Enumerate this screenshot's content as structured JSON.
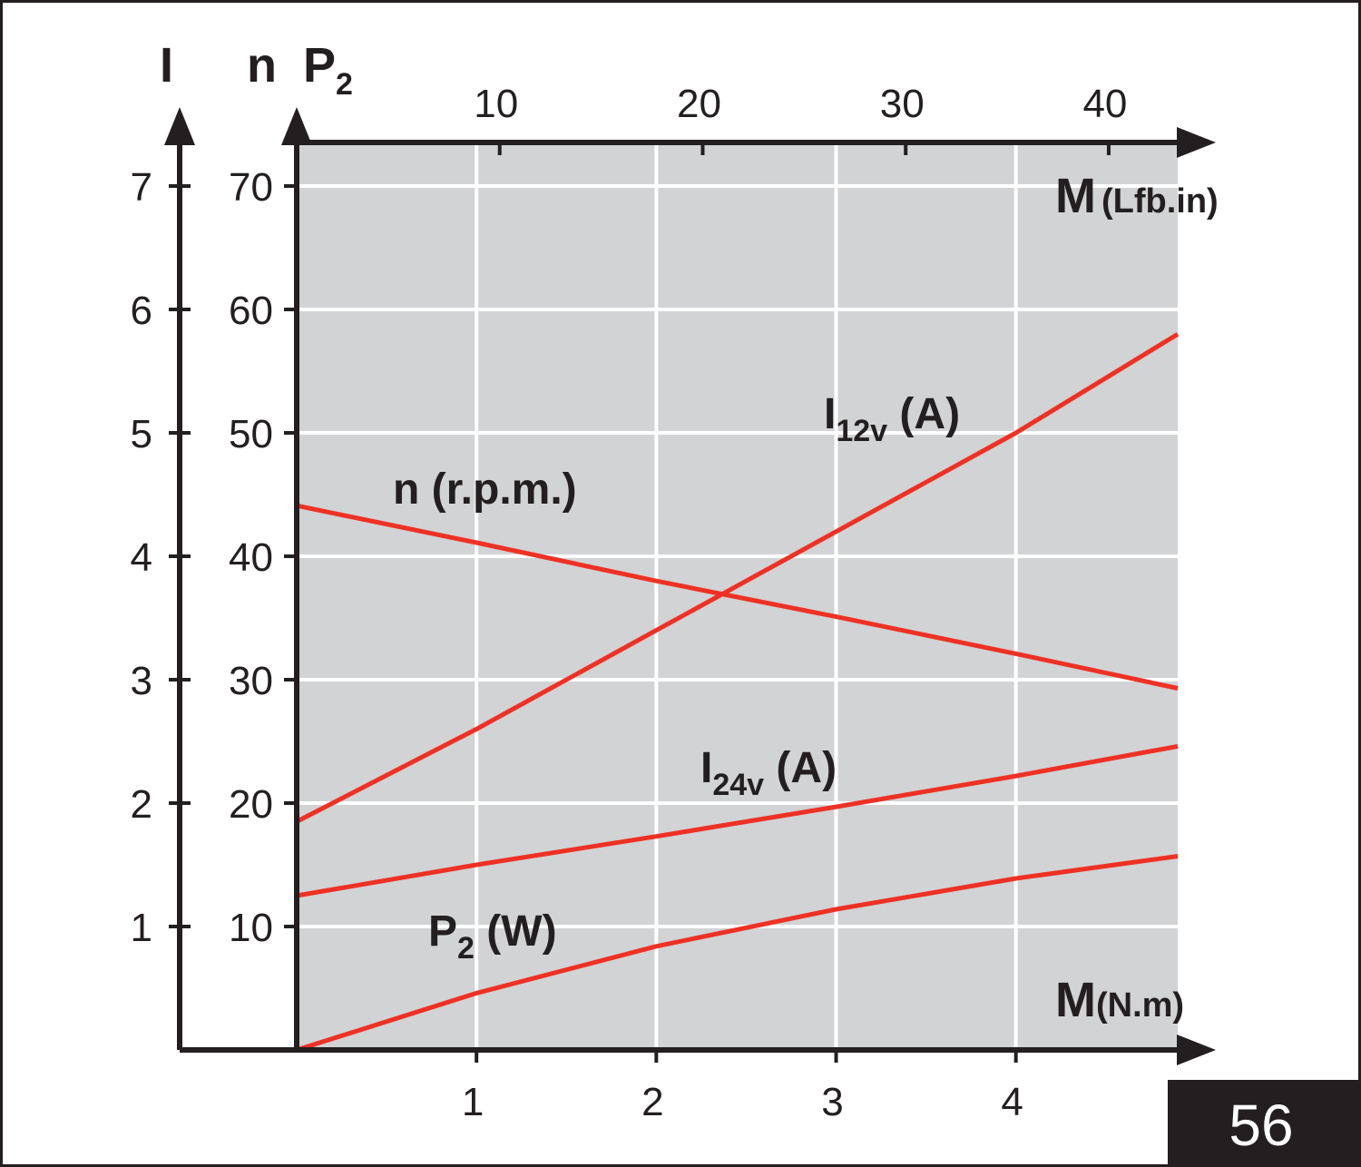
{
  "chart_data": {
    "type": "line",
    "colors": {
      "plot_background": "#d1d3d4",
      "line": "#ee3124",
      "grid": "#ffffff",
      "axis": "#231f20",
      "badge": "#231f20"
    },
    "grid": true,
    "x_axis": {
      "symbol": "M",
      "unit": "(N.m)",
      "range": [
        0,
        4.9
      ],
      "ticks": [
        1,
        2,
        3,
        4
      ],
      "tick_labels": [
        "1",
        "2",
        "3",
        "4"
      ]
    },
    "x2_axis": {
      "symbol": "M",
      "unit": "(Lfb.in)",
      "range": [
        0,
        43.4
      ],
      "ticks": [
        10,
        20,
        30,
        40
      ],
      "tick_labels": [
        "10",
        "20",
        "30",
        "40"
      ]
    },
    "y_axes": [
      {
        "symbol": "I",
        "range": [
          0,
          7
        ],
        "ticks": [
          1,
          2,
          3,
          4,
          5,
          6,
          7
        ],
        "tick_labels": [
          "1",
          "2",
          "3",
          "4",
          "5",
          "6",
          "7"
        ]
      },
      {
        "symbol": "n",
        "symbol2": "P",
        "symbol2_sub": "2",
        "range": [
          0,
          70
        ],
        "ticks": [
          10,
          20,
          30,
          40,
          50,
          60,
          70
        ],
        "tick_labels": [
          "10",
          "20",
          "30",
          "40",
          "50",
          "60",
          "70"
        ]
      }
    ],
    "series": [
      {
        "name": "n (r.p.m.)",
        "label_main": "n (r.p.m.)",
        "label_sub": "",
        "label_tail": "",
        "axis": "n",
        "x": [
          0,
          1,
          2,
          3,
          4,
          4.9
        ],
        "y": [
          44.1,
          41.1,
          38.0,
          35.1,
          32.1,
          29.3
        ]
      },
      {
        "name": "I12v (A)",
        "label_main": "I",
        "label_sub": "12v",
        "label_tail": " (A)",
        "axis": "I",
        "x": [
          0,
          1,
          2,
          3,
          4,
          4.9
        ],
        "y": [
          1.85,
          2.6,
          3.4,
          4.2,
          5.0,
          5.8
        ]
      },
      {
        "name": "I24v (A)",
        "label_main": "I",
        "label_sub": "24v",
        "label_tail": " (A)",
        "axis": "I",
        "x": [
          0,
          1,
          2,
          3,
          4,
          4.9
        ],
        "y": [
          1.25,
          1.5,
          1.73,
          1.97,
          2.22,
          2.46
        ]
      },
      {
        "name": "P2 (W)",
        "label_main": "P",
        "label_sub": "2",
        "label_tail": " (W)",
        "axis": "n",
        "x": [
          0,
          1,
          2,
          3,
          4,
          4.9
        ],
        "y": [
          0,
          4.6,
          8.4,
          11.4,
          13.9,
          15.7
        ]
      }
    ]
  },
  "figure_number": "56"
}
